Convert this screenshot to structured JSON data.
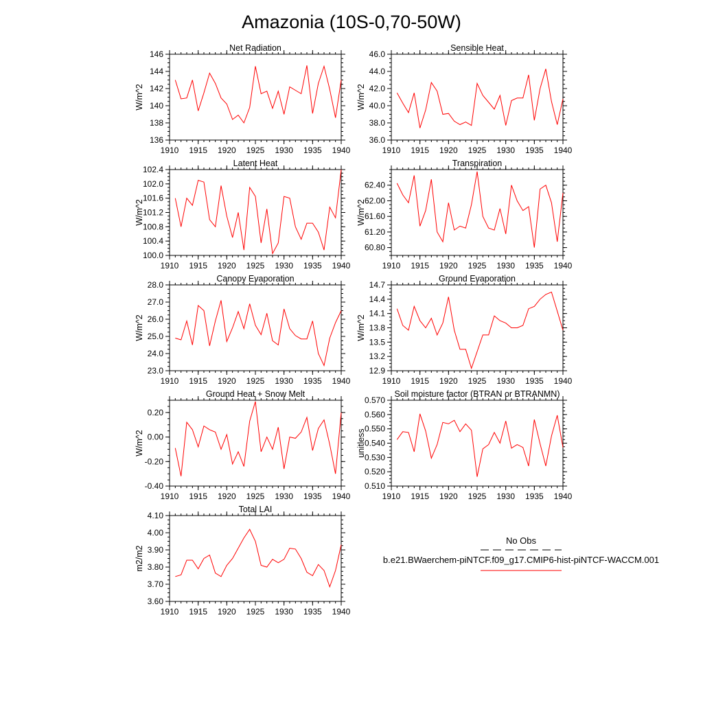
{
  "title": "Amazonia (10S-0,70-50W)",
  "legend": {
    "entries": [
      {
        "label": "No Obs",
        "color": "#000000",
        "style": "dashed"
      },
      {
        "label": "b.e21.BWaerchem-piNTCF.f09_g17.CMIP6-hist-piNTCF-WACCM.001",
        "color": "#ff0000",
        "style": "solid"
      }
    ]
  },
  "chart_data": [
    {
      "type": "line",
      "title": "Net Radiation",
      "ylabel": "W/m^2",
      "xlim": [
        1910,
        1940
      ],
      "ylim": [
        136,
        146
      ],
      "xticks": [
        "1910",
        "1915",
        "1920",
        "1925",
        "1930",
        "1935",
        "1940"
      ],
      "yticks": [
        "136",
        "138",
        "140",
        "142",
        "144",
        "146"
      ],
      "series": [
        {
          "color": "#ff0000",
          "x": [
            1911,
            1912,
            1913,
            1914,
            1915,
            1916,
            1917,
            1918,
            1919,
            1920,
            1921,
            1922,
            1923,
            1924,
            1925,
            1926,
            1927,
            1928,
            1929,
            1930,
            1931,
            1932,
            1933,
            1934,
            1935,
            1936,
            1937,
            1938,
            1939,
            1940
          ],
          "y": [
            143.0,
            140.8,
            140.9,
            143.0,
            139.4,
            141.5,
            143.8,
            142.6,
            140.9,
            140.2,
            138.4,
            138.9,
            138.0,
            139.8,
            144.6,
            141.4,
            141.7,
            139.7,
            141.7,
            139.0,
            142.2,
            141.8,
            141.4,
            144.7,
            139.1,
            142.6,
            144.6,
            141.9,
            138.6,
            143.0
          ]
        }
      ]
    },
    {
      "type": "line",
      "title": "Sensible Heat",
      "ylabel": "W/m^2",
      "xlim": [
        1910,
        1940
      ],
      "ylim": [
        36.0,
        46.0
      ],
      "xticks": [
        "1910",
        "1915",
        "1920",
        "1925",
        "1930",
        "1935",
        "1940"
      ],
      "yticks": [
        "36.0",
        "38.0",
        "40.0",
        "42.0",
        "44.0",
        "46.0"
      ],
      "series": [
        {
          "color": "#ff0000",
          "x": [
            1911,
            1912,
            1913,
            1914,
            1915,
            1916,
            1917,
            1918,
            1919,
            1920,
            1921,
            1922,
            1923,
            1924,
            1925,
            1926,
            1927,
            1928,
            1929,
            1930,
            1931,
            1932,
            1933,
            1934,
            1935,
            1936,
            1937,
            1938,
            1939,
            1940
          ],
          "y": [
            41.5,
            40.3,
            39.2,
            41.5,
            37.4,
            39.5,
            42.7,
            41.7,
            39.0,
            39.1,
            38.2,
            37.8,
            38.1,
            37.7,
            42.6,
            41.2,
            40.4,
            39.6,
            41.2,
            37.7,
            40.6,
            40.9,
            40.9,
            43.6,
            38.3,
            42.0,
            44.3,
            40.5,
            37.8,
            40.8
          ]
        }
      ]
    },
    {
      "type": "line",
      "title": "Latent Heat",
      "ylabel": "W/m^2",
      "xlim": [
        1910,
        1940
      ],
      "ylim": [
        100.0,
        102.4
      ],
      "xticks": [
        "1910",
        "1915",
        "1920",
        "1925",
        "1930",
        "1935",
        "1940"
      ],
      "yticks": [
        "100.0",
        "100.4",
        "100.8",
        "101.2",
        "101.6",
        "102.0",
        "102.4"
      ],
      "series": [
        {
          "color": "#ff0000",
          "x": [
            1911,
            1912,
            1913,
            1914,
            1915,
            1916,
            1917,
            1918,
            1919,
            1920,
            1921,
            1922,
            1923,
            1924,
            1925,
            1926,
            1927,
            1928,
            1929,
            1930,
            1931,
            1932,
            1933,
            1934,
            1935,
            1936,
            1937,
            1938,
            1939,
            1940
          ],
          "y": [
            101.6,
            100.8,
            101.6,
            101.4,
            102.1,
            102.05,
            101.0,
            100.8,
            101.95,
            101.1,
            100.5,
            101.2,
            100.15,
            101.9,
            101.65,
            100.35,
            101.3,
            100.05,
            100.35,
            101.65,
            101.6,
            100.8,
            100.45,
            100.9,
            100.9,
            100.65,
            100.15,
            101.35,
            101.05,
            102.4
          ]
        }
      ]
    },
    {
      "type": "line",
      "title": "Transpiration",
      "ylabel": "W/m^2",
      "xlim": [
        1910,
        1940
      ],
      "ylim": [
        60.6,
        62.8
      ],
      "xticks": [
        "1910",
        "1915",
        "1920",
        "1925",
        "1930",
        "1935",
        "1940"
      ],
      "yticks": [
        "60.80",
        "61.20",
        "61.60",
        "62.00",
        "62.40"
      ],
      "series": [
        {
          "color": "#ff0000",
          "x": [
            1911,
            1912,
            1913,
            1914,
            1915,
            1916,
            1917,
            1918,
            1919,
            1920,
            1921,
            1922,
            1923,
            1924,
            1925,
            1926,
            1927,
            1928,
            1929,
            1930,
            1931,
            1932,
            1933,
            1934,
            1935,
            1936,
            1937,
            1938,
            1939,
            1940
          ],
          "y": [
            62.45,
            62.15,
            61.95,
            62.65,
            61.35,
            61.75,
            62.55,
            61.2,
            60.95,
            61.95,
            61.25,
            61.35,
            61.3,
            61.9,
            62.75,
            61.6,
            61.3,
            61.25,
            61.8,
            61.15,
            62.4,
            62.0,
            61.75,
            61.85,
            60.8,
            62.3,
            62.4,
            61.95,
            60.95,
            62.2
          ]
        }
      ]
    },
    {
      "type": "line",
      "title": "Canopy Evaporation",
      "ylabel": "W/m^2",
      "xlim": [
        1910,
        1940
      ],
      "ylim": [
        23.0,
        28.0
      ],
      "xticks": [
        "1910",
        "1915",
        "1920",
        "1925",
        "1930",
        "1935",
        "1940"
      ],
      "yticks": [
        "23.0",
        "24.0",
        "25.0",
        "26.0",
        "27.0",
        "28.0"
      ],
      "series": [
        {
          "color": "#ff0000",
          "x": [
            1911,
            1912,
            1913,
            1914,
            1915,
            1916,
            1917,
            1918,
            1919,
            1920,
            1921,
            1922,
            1923,
            1924,
            1925,
            1926,
            1927,
            1928,
            1929,
            1930,
            1931,
            1932,
            1933,
            1934,
            1935,
            1936,
            1937,
            1938,
            1939,
            1940
          ],
          "y": [
            24.9,
            24.8,
            25.9,
            24.5,
            26.8,
            26.5,
            24.45,
            25.9,
            27.1,
            24.7,
            25.5,
            26.45,
            25.45,
            26.9,
            25.65,
            25.1,
            26.35,
            24.75,
            24.5,
            26.6,
            25.45,
            25.05,
            24.85,
            24.85,
            25.9,
            24.0,
            23.3,
            24.9,
            25.8,
            26.5
          ]
        }
      ]
    },
    {
      "type": "line",
      "title": "Ground Evaporation",
      "ylabel": "W/m^2",
      "xlim": [
        1910,
        1940
      ],
      "ylim": [
        12.9,
        14.7
      ],
      "xticks": [
        "1910",
        "1915",
        "1920",
        "1925",
        "1930",
        "1935",
        "1940"
      ],
      "yticks": [
        "12.9",
        "13.2",
        "13.5",
        "13.8",
        "14.1",
        "14.4",
        "14.7"
      ],
      "series": [
        {
          "color": "#ff0000",
          "x": [
            1911,
            1912,
            1913,
            1914,
            1915,
            1916,
            1917,
            1918,
            1919,
            1920,
            1921,
            1922,
            1923,
            1924,
            1925,
            1926,
            1927,
            1928,
            1929,
            1930,
            1931,
            1932,
            1933,
            1934,
            1935,
            1936,
            1937,
            1938,
            1939,
            1940
          ],
          "y": [
            14.2,
            13.85,
            13.75,
            14.25,
            13.95,
            13.8,
            14.0,
            13.65,
            13.9,
            14.45,
            13.75,
            13.35,
            13.35,
            12.95,
            13.3,
            13.65,
            13.65,
            14.05,
            13.95,
            13.9,
            13.8,
            13.8,
            13.85,
            14.2,
            14.25,
            14.4,
            14.5,
            14.55,
            14.15,
            13.75
          ]
        }
      ]
    },
    {
      "type": "line",
      "title": "Ground Heat + Snow Melt",
      "ylabel": "W/m^2",
      "xlim": [
        1910,
        1940
      ],
      "ylim": [
        -0.4,
        0.3
      ],
      "xticks": [
        "1910",
        "1915",
        "1920",
        "1925",
        "1930",
        "1935",
        "1940"
      ],
      "yticks": [
        "-0.40",
        "-0.20",
        "0.00",
        "0.20"
      ],
      "series": [
        {
          "color": "#ff0000",
          "x": [
            1911,
            1912,
            1913,
            1914,
            1915,
            1916,
            1917,
            1918,
            1919,
            1920,
            1921,
            1922,
            1923,
            1924,
            1925,
            1926,
            1927,
            1928,
            1929,
            1930,
            1931,
            1932,
            1933,
            1934,
            1935,
            1936,
            1937,
            1938,
            1939,
            1940
          ],
          "y": [
            -0.09,
            -0.32,
            0.12,
            0.06,
            -0.08,
            0.09,
            0.06,
            0.04,
            -0.1,
            0.02,
            -0.22,
            -0.12,
            -0.24,
            0.13,
            0.29,
            -0.12,
            0.0,
            -0.1,
            0.08,
            -0.26,
            0.0,
            -0.01,
            0.04,
            0.16,
            -0.11,
            0.07,
            0.14,
            -0.06,
            -0.3,
            0.2
          ]
        }
      ]
    },
    {
      "type": "line",
      "title": "Soil moisture factor (BTRAN or BTRANMN)",
      "ylabel": "unitless",
      "xlim": [
        1910,
        1940
      ],
      "ylim": [
        0.51,
        0.57
      ],
      "xticks": [
        "1910",
        "1915",
        "1920",
        "1925",
        "1930",
        "1935",
        "1940"
      ],
      "yticks": [
        "0.510",
        "0.520",
        "0.530",
        "0.540",
        "0.550",
        "0.560",
        "0.570"
      ],
      "series": [
        {
          "color": "#ff0000",
          "x": [
            1911,
            1912,
            1913,
            1914,
            1915,
            1916,
            1917,
            1918,
            1919,
            1920,
            1921,
            1922,
            1923,
            1924,
            1925,
            1926,
            1927,
            1928,
            1929,
            1930,
            1931,
            1932,
            1933,
            1934,
            1935,
            1936,
            1937,
            1938,
            1939,
            1940
          ],
          "y": [
            0.5425,
            0.548,
            0.5475,
            0.534,
            0.5605,
            0.5485,
            0.5295,
            0.539,
            0.5545,
            0.5535,
            0.556,
            0.548,
            0.5535,
            0.549,
            0.5165,
            0.536,
            0.539,
            0.5475,
            0.54,
            0.5555,
            0.5365,
            0.539,
            0.537,
            0.524,
            0.5565,
            0.5395,
            0.524,
            0.545,
            0.5595,
            0.537
          ]
        }
      ]
    },
    {
      "type": "line",
      "title": "Total LAI",
      "ylabel": "m2/m2",
      "xlim": [
        1910,
        1940
      ],
      "ylim": [
        3.6,
        4.1
      ],
      "xticks": [
        "1910",
        "1915",
        "1920",
        "1925",
        "1930",
        "1935",
        "1940"
      ],
      "yticks": [
        "3.60",
        "3.70",
        "3.80",
        "3.90",
        "4.00",
        "4.10"
      ],
      "series": [
        {
          "color": "#ff0000",
          "x": [
            1911,
            1912,
            1913,
            1914,
            1915,
            1916,
            1917,
            1918,
            1919,
            1920,
            1921,
            1922,
            1923,
            1924,
            1925,
            1926,
            1927,
            1928,
            1929,
            1930,
            1931,
            1932,
            1933,
            1934,
            1935,
            1936,
            1937,
            1938,
            1939,
            1940
          ],
          "y": [
            3.745,
            3.755,
            3.84,
            3.84,
            3.79,
            3.85,
            3.87,
            3.765,
            3.745,
            3.81,
            3.85,
            3.91,
            3.97,
            4.02,
            3.95,
            3.81,
            3.8,
            3.845,
            3.825,
            3.845,
            3.91,
            3.905,
            3.85,
            3.77,
            3.75,
            3.815,
            3.78,
            3.685,
            3.78,
            3.93
          ]
        }
      ]
    }
  ]
}
